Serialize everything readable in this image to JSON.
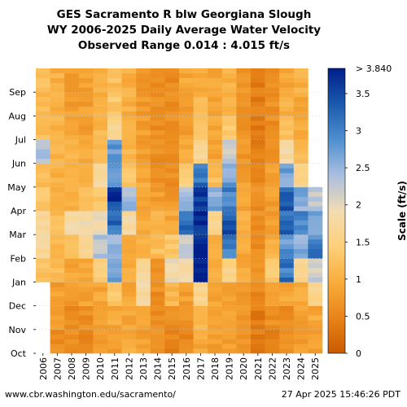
{
  "title": {
    "line1": "GES Sacramento R blw Georgiana Slough",
    "line2": "WY 2006-2025 Daily Average Water Velocity",
    "line3": "Observed Range 0.014 : 4.015 ft/s"
  },
  "footer": {
    "url": "www.cbr.washington.edu/sacramento/",
    "timestamp": "27 Apr 2025 15:46:26 PDT"
  },
  "chart_data": {
    "type": "heatmap",
    "title": "GES Sacramento R blw Georgiana Slough WY 2006-2025 Daily Average Water Velocity",
    "x_categories": [
      "2006",
      "2007",
      "2008",
      "2009",
      "2010",
      "2011",
      "2012",
      "2013",
      "2014",
      "2015",
      "2016",
      "2017",
      "2018",
      "2019",
      "2020",
      "2021",
      "2022",
      "2023",
      "2024",
      "2025"
    ],
    "y_ticks": [
      "Oct",
      "Nov",
      "Dec",
      "Jan",
      "Feb",
      "Mar",
      "Apr",
      "May",
      "Jun",
      "Jul",
      "Aug",
      "Sep"
    ],
    "colorbar": {
      "label": "Scale (ft/s)",
      "min": 0,
      "max": 3.84,
      "max_label": "> 3.840",
      "ticks": [
        "0",
        "0.5",
        "1",
        "1.5",
        "2",
        "2.5",
        "3",
        "3.5"
      ],
      "tick_values": [
        0,
        0.5,
        1,
        1.5,
        2,
        2.5,
        3,
        3.5
      ],
      "colors": [
        "#c85a00",
        "#e88418",
        "#f9ad3c",
        "#fdd07a",
        "#f3dcb2",
        "#a9bfe0",
        "#4f8fcf",
        "#1a5aad",
        "#001e8a"
      ]
    },
    "observed_range": [
      0.014,
      4.015
    ],
    "month_labels": [
      "Oct",
      "Nov",
      "Dec",
      "Jan",
      "Feb",
      "Mar",
      "Apr",
      "May",
      "Jun",
      "Jul",
      "Aug",
      "Sep"
    ],
    "monthly_mean_velocity_ft_s": {
      "2006": [
        null,
        null,
        null,
        1.2,
        1.7,
        1.7,
        1.3,
        1.2,
        2.3,
        1.2,
        1.1,
        1.2
      ],
      "2007": [
        0.6,
        0.8,
        0.8,
        1.2,
        1.1,
        1.2,
        1.0,
        1.0,
        1.1,
        1.0,
        1.0,
        1.0
      ],
      "2008": [
        0.6,
        0.6,
        0.7,
        0.9,
        1.2,
        1.8,
        1.0,
        1.1,
        1.0,
        0.9,
        0.8,
        0.8
      ],
      "2009": [
        0.5,
        0.6,
        0.8,
        0.9,
        1.6,
        1.9,
        1.2,
        1.0,
        0.9,
        0.8,
        0.8,
        0.8
      ],
      "2010": [
        0.7,
        0.8,
        0.9,
        1.4,
        2.3,
        1.9,
        1.3,
        1.8,
        1.2,
        1.1,
        1.0,
        1.0
      ],
      "2011": [
        0.8,
        0.9,
        1.3,
        2.6,
        2.5,
        3.2,
        3.6,
        2.6,
        2.8,
        1.6,
        1.3,
        1.2
      ],
      "2012": [
        0.9,
        0.9,
        0.9,
        1.0,
        1.0,
        1.8,
        2.5,
        1.3,
        1.1,
        1.1,
        1.0,
        1.0
      ],
      "2013": [
        0.8,
        0.9,
        1.8,
        1.7,
        1.0,
        0.9,
        0.8,
        0.9,
        0.8,
        0.8,
        0.7,
        0.7
      ],
      "2014": [
        0.6,
        0.6,
        0.6,
        0.6,
        1.2,
        1.1,
        0.8,
        0.7,
        0.6,
        0.6,
        0.6,
        0.6
      ],
      "2015": [
        0.5,
        0.6,
        1.1,
        1.9,
        1.3,
        0.9,
        0.7,
        0.6,
        0.6,
        0.6,
        0.6,
        0.6
      ],
      "2016": [
        0.5,
        0.6,
        0.8,
        1.8,
        2.2,
        3.1,
        2.4,
        1.4,
        0.9,
        0.8,
        0.8,
        0.9
      ],
      "2017": [
        0.9,
        1.1,
        1.6,
        3.7,
        3.9,
        3.8,
        3.6,
        3.1,
        1.6,
        1.2,
        1.1,
        1.0
      ],
      "2018": [
        0.8,
        0.9,
        0.9,
        1.0,
        1.0,
        1.6,
        2.6,
        1.2,
        0.9,
        0.9,
        0.9,
        0.9
      ],
      "2019": [
        0.8,
        0.8,
        0.9,
        1.6,
        3.1,
        3.4,
        3.0,
        2.7,
        2.2,
        1.3,
        1.1,
        1.0
      ],
      "2020": [
        0.7,
        0.7,
        0.8,
        0.9,
        0.9,
        1.0,
        0.9,
        0.8,
        0.7,
        0.7,
        0.7,
        0.7
      ],
      "2021": [
        0.4,
        0.4,
        0.5,
        0.6,
        0.6,
        0.6,
        0.6,
        0.5,
        0.4,
        0.4,
        0.4,
        0.4
      ],
      "2022": [
        0.5,
        0.6,
        0.8,
        1.4,
        1.0,
        0.8,
        0.8,
        0.8,
        0.6,
        0.6,
        0.6,
        0.6
      ],
      "2023": [
        0.6,
        0.6,
        0.9,
        3.1,
        2.8,
        3.2,
        3.3,
        2.7,
        1.8,
        1.3,
        1.0,
        0.9
      ],
      "2024": [
        0.8,
        0.8,
        0.9,
        1.6,
        2.6,
        2.9,
        2.6,
        1.6,
        1.1,
        0.9,
        0.9,
        1.0
      ],
      "2025": [
        0.8,
        0.9,
        1.6,
        2.2,
        3.0,
        2.8,
        2.3,
        null,
        null,
        null,
        null,
        null
      ]
    }
  }
}
